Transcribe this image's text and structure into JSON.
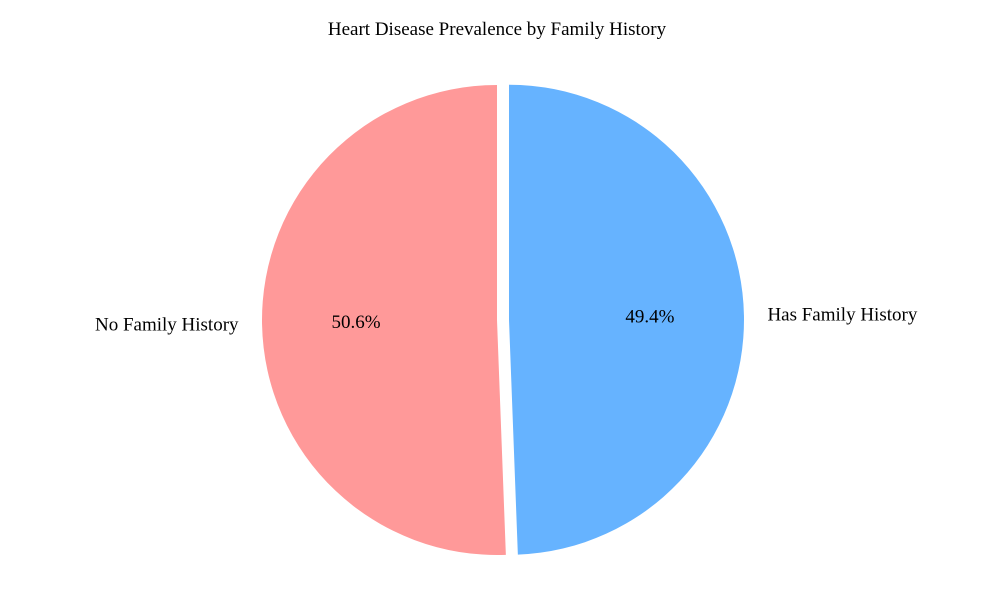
{
  "chart_data": {
    "type": "pie",
    "title": "Heart Disease Prevalence by Family History",
    "slices": [
      {
        "label": "No Family History",
        "value": 50.6,
        "percent_label": "50.6%",
        "color": "#ff9999",
        "exploded": false
      },
      {
        "label": "Has Family History",
        "value": 49.4,
        "percent_label": "49.4%",
        "color": "#66b3ff",
        "exploded": true
      }
    ],
    "start_angle_deg": 90,
    "direction": "counterclockwise"
  }
}
